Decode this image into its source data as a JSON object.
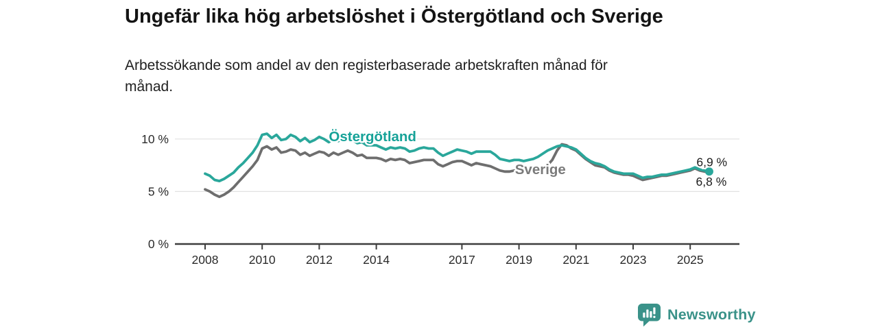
{
  "header": {
    "title": "Ungefär lika hög arbetslöshet i Östergötland och Sverige",
    "subtitle": "Arbetssökande som andel av den registerbaserade arbetskraften månad för\nmånad."
  },
  "footer": {
    "brand": "Newsworthy",
    "brand_color": "#3a9289"
  },
  "colors": {
    "ostergotland_line": "#2aa79b",
    "ostergotland_label": "#16a298",
    "sverige_line": "#6e6e6e",
    "sverige_label": "#7b7b7b",
    "gridline": "#e1e1e1",
    "axis": "#3d3d3d",
    "tick_text": "#2b2b2b",
    "end_label_text": "#1c1c1c"
  },
  "chart_data": {
    "type": "line",
    "title": "Ungefär lika hög arbetslöshet i Östergötland och Sverige",
    "subtitle": "Arbetssökande som andel av den registerbaserade arbetskraften månad för månad.",
    "unit": "%",
    "grid": true,
    "legend_position": "inline-labels",
    "x_start_year": 2008.0,
    "x_step_years": 0.166667,
    "x_ticks": [
      2008,
      2010,
      2012,
      2014,
      2017,
      2019,
      2021,
      2023,
      2025
    ],
    "y_ticks": [
      {
        "value": 0,
        "label": "0 %"
      },
      {
        "value": 5,
        "label": "5 %"
      },
      {
        "value": 10,
        "label": "10 %"
      }
    ],
    "ylim": [
      0,
      11.7
    ],
    "xlim": [
      2006.9,
      2026.7
    ],
    "series": [
      {
        "name": "Sverige",
        "color": "#6e6e6e",
        "label_color": "#7b7b7b",
        "label_pos": {
          "year": 2019.75,
          "value": 7.1
        },
        "end_dot": false,
        "values": [
          5.2,
          5.0,
          4.7,
          4.5,
          4.7,
          5.0,
          5.4,
          5.9,
          6.4,
          6.9,
          7.4,
          8.0,
          9.1,
          9.3,
          9.0,
          9.2,
          8.7,
          8.8,
          9.0,
          8.9,
          8.5,
          8.7,
          8.4,
          8.6,
          8.8,
          8.7,
          8.4,
          8.7,
          8.5,
          8.7,
          8.9,
          8.7,
          8.4,
          8.5,
          8.2,
          8.2,
          8.2,
          8.1,
          7.9,
          8.1,
          8.0,
          8.1,
          8.0,
          7.7,
          7.8,
          7.9,
          8.0,
          8.0,
          8.0,
          7.6,
          7.4,
          7.6,
          7.8,
          7.9,
          7.9,
          7.7,
          7.5,
          7.7,
          7.6,
          7.5,
          7.4,
          7.2,
          7.0,
          6.9,
          6.9,
          7.0,
          7.0,
          6.9,
          7.0,
          7.0,
          7.1,
          7.3,
          7.5,
          8.0,
          8.9,
          9.5,
          9.4,
          9.1,
          8.9,
          8.5,
          8.1,
          7.8,
          7.5,
          7.4,
          7.3,
          7.0,
          6.8,
          6.7,
          6.6,
          6.6,
          6.5,
          6.3,
          6.1,
          6.2,
          6.3,
          6.4,
          6.5,
          6.5,
          6.6,
          6.7,
          6.8,
          6.9,
          7.0,
          7.2,
          7.0,
          6.9,
          6.8
        ]
      },
      {
        "name": "Östergötland",
        "color": "#2aa79b",
        "label_color": "#16a298",
        "label_pos": {
          "year": 2013.87,
          "value": 10.25
        },
        "end_dot": true,
        "values": [
          6.7,
          6.5,
          6.1,
          6.0,
          6.2,
          6.5,
          6.8,
          7.3,
          7.7,
          8.2,
          8.7,
          9.4,
          10.4,
          10.5,
          10.1,
          10.4,
          9.9,
          10.0,
          10.4,
          10.2,
          9.8,
          10.1,
          9.7,
          9.9,
          10.2,
          10.0,
          9.7,
          10.0,
          9.8,
          10.0,
          10.1,
          9.9,
          9.6,
          9.7,
          9.4,
          9.4,
          9.4,
          9.2,
          9.0,
          9.2,
          9.1,
          9.2,
          9.1,
          8.8,
          8.9,
          9.1,
          9.2,
          9.1,
          9.1,
          8.7,
          8.4,
          8.6,
          8.8,
          9.0,
          8.9,
          8.8,
          8.6,
          8.8,
          8.8,
          8.8,
          8.8,
          8.5,
          8.1,
          8.0,
          7.9,
          8.0,
          8.0,
          7.9,
          8.0,
          8.1,
          8.3,
          8.6,
          8.9,
          9.1,
          9.3,
          9.4,
          9.3,
          9.2,
          9.0,
          8.6,
          8.2,
          7.9,
          7.7,
          7.6,
          7.4,
          7.1,
          6.9,
          6.8,
          6.7,
          6.7,
          6.7,
          6.5,
          6.3,
          6.4,
          6.4,
          6.5,
          6.6,
          6.6,
          6.7,
          6.8,
          6.9,
          7.0,
          7.1,
          7.3,
          7.1,
          7.0,
          6.9
        ]
      }
    ],
    "end_labels": [
      {
        "text": "6,9 %",
        "year": 2025.22,
        "value": 7.8
      },
      {
        "text": "6,8 %",
        "year": 2025.2,
        "value": 5.95
      }
    ]
  }
}
